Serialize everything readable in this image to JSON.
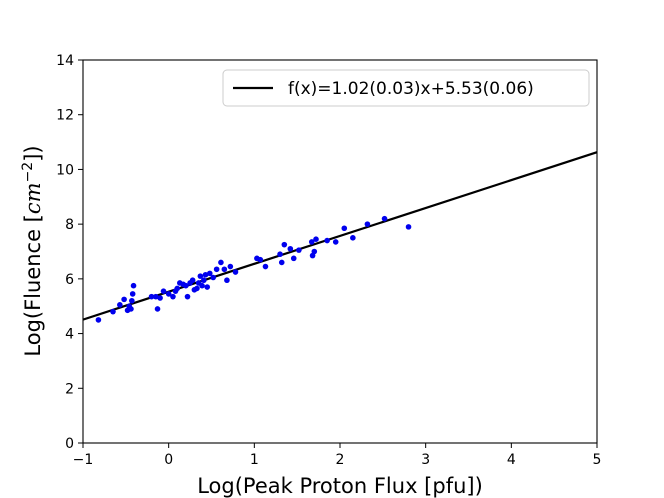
{
  "chart_data": {
    "type": "scatter",
    "xlabel": "Log(Peak Proton Flux [pfu])",
    "ylabel": {
      "prefix": "Log(Fluence [",
      "math": "cm",
      "sup": "−2",
      "suffix": "])"
    },
    "xlim": [
      -1,
      5
    ],
    "ylim": [
      0,
      14
    ],
    "xticks": [
      "−1",
      "0",
      "1",
      "2",
      "3",
      "4",
      "5"
    ],
    "yticks": [
      "0",
      "2",
      "4",
      "6",
      "8",
      "10",
      "12",
      "14"
    ],
    "grid": false,
    "legend_position": "top-right",
    "fit_line": {
      "label": "f(x)=1.02(0.03)x+5.53(0.06)",
      "slope": 1.02,
      "intercept": 5.53,
      "color": "#000000"
    },
    "series": [
      {
        "color": "#0000ee",
        "points": [
          [
            -0.82,
            4.5
          ],
          [
            -0.65,
            4.8
          ],
          [
            -0.57,
            5.05
          ],
          [
            -0.52,
            5.25
          ],
          [
            -0.48,
            4.85
          ],
          [
            -0.46,
            5.0
          ],
          [
            -0.44,
            4.9
          ],
          [
            -0.43,
            5.2
          ],
          [
            -0.42,
            5.45
          ],
          [
            -0.41,
            5.75
          ],
          [
            -0.2,
            5.35
          ],
          [
            -0.15,
            5.35
          ],
          [
            -0.13,
            4.9
          ],
          [
            -0.1,
            5.3
          ],
          [
            -0.06,
            5.55
          ],
          [
            0.0,
            5.45
          ],
          [
            0.05,
            5.35
          ],
          [
            0.08,
            5.55
          ],
          [
            0.1,
            5.65
          ],
          [
            0.13,
            5.85
          ],
          [
            0.17,
            5.8
          ],
          [
            0.2,
            5.75
          ],
          [
            0.22,
            5.35
          ],
          [
            0.25,
            5.85
          ],
          [
            0.28,
            5.95
          ],
          [
            0.3,
            5.6
          ],
          [
            0.33,
            5.65
          ],
          [
            0.35,
            5.85
          ],
          [
            0.37,
            6.1
          ],
          [
            0.39,
            5.75
          ],
          [
            0.41,
            5.95
          ],
          [
            0.43,
            6.15
          ],
          [
            0.45,
            5.7
          ],
          [
            0.48,
            6.2
          ],
          [
            0.52,
            6.05
          ],
          [
            0.56,
            6.35
          ],
          [
            0.61,
            6.6
          ],
          [
            0.65,
            6.35
          ],
          [
            0.68,
            5.95
          ],
          [
            0.72,
            6.45
          ],
          [
            0.78,
            6.25
          ],
          [
            1.03,
            6.75
          ],
          [
            1.07,
            6.7
          ],
          [
            1.13,
            6.45
          ],
          [
            1.3,
            6.9
          ],
          [
            1.32,
            6.6
          ],
          [
            1.35,
            7.25
          ],
          [
            1.42,
            7.1
          ],
          [
            1.46,
            6.75
          ],
          [
            1.52,
            7.05
          ],
          [
            1.67,
            7.35
          ],
          [
            1.68,
            6.85
          ],
          [
            1.7,
            7.0
          ],
          [
            1.72,
            7.45
          ],
          [
            1.85,
            7.4
          ],
          [
            1.95,
            7.35
          ],
          [
            2.05,
            7.85
          ],
          [
            2.15,
            7.5
          ],
          [
            2.32,
            8.0
          ],
          [
            2.52,
            8.2
          ],
          [
            2.8,
            7.9
          ]
        ]
      }
    ]
  }
}
